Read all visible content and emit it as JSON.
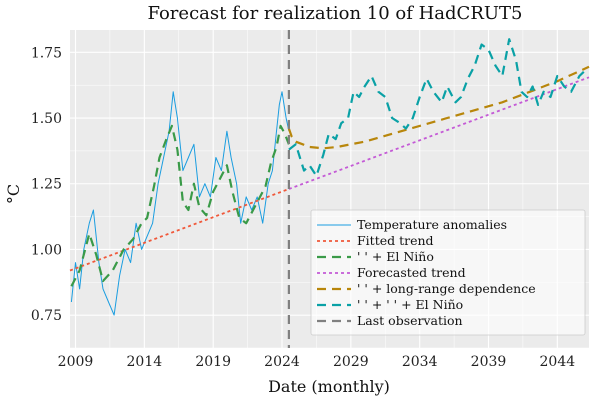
{
  "chart_data": {
    "type": "line",
    "title": "Forecast for realization 10 of HadCRUT5",
    "xlabel": "Date (monthly)",
    "ylabel": "°C",
    "xlim": [
      2008.6,
      2046.3
    ],
    "ylim": [
      0.625,
      1.835
    ],
    "grid": true,
    "legend_position": "bottom-right",
    "x_ticks": [
      2009,
      2014,
      2019,
      2024,
      2029,
      2034,
      2039,
      2044
    ],
    "x_tick_labels": [
      "2009",
      "2014",
      "2019",
      "2024",
      "2029",
      "2034",
      "2039",
      "2044"
    ],
    "y_ticks": [
      0.75,
      1.0,
      1.25,
      1.5,
      1.75
    ],
    "y_tick_labels": [
      "0.75",
      "1.00",
      "1.25",
      "1.50",
      "1.75"
    ],
    "last_observation": 2024.5,
    "colors": {
      "background": "#ebebeb",
      "grid": "#ffffff",
      "observed": "#1a9de0",
      "fitted_trend": "#f0583a",
      "el_nino": "#3a9a48",
      "forecast_trend": "#c45ad6",
      "long_range": "#b8860b",
      "forecast_el_nino": "#0aa1a6",
      "last_obs": "#808080"
    },
    "series": [
      {
        "name": "Temperature anomalies",
        "legend_label": "Temperature anomalies",
        "style": "solid-thin",
        "x": [
          2008.7,
          2009.0,
          2009.3,
          2009.6,
          2010.0,
          2010.3,
          2010.7,
          2011.0,
          2011.4,
          2011.8,
          2012.2,
          2012.6,
          2013.0,
          2013.4,
          2013.8,
          2014.2,
          2014.6,
          2015.0,
          2015.4,
          2015.8,
          2016.1,
          2016.4,
          2016.8,
          2017.2,
          2017.6,
          2018.0,
          2018.4,
          2018.8,
          2019.2,
          2019.6,
          2020.0,
          2020.3,
          2020.7,
          2021.0,
          2021.4,
          2021.8,
          2022.2,
          2022.6,
          2023.0,
          2023.3,
          2023.6,
          2023.8,
          2024.0,
          2024.3,
          2024.5
        ],
        "values": [
          0.8,
          0.95,
          0.85,
          1.0,
          1.1,
          1.15,
          0.95,
          0.85,
          0.8,
          0.75,
          0.9,
          1.0,
          0.95,
          1.1,
          1.0,
          1.05,
          1.1,
          1.25,
          1.35,
          1.45,
          1.6,
          1.5,
          1.3,
          1.35,
          1.4,
          1.2,
          1.25,
          1.2,
          1.35,
          1.3,
          1.45,
          1.35,
          1.25,
          1.1,
          1.2,
          1.15,
          1.2,
          1.1,
          1.25,
          1.3,
          1.45,
          1.55,
          1.6,
          1.5,
          1.45
        ]
      },
      {
        "name": "Fitted trend",
        "legend_label": "Fitted trend",
        "style": "dotted",
        "x": [
          2008.6,
          2024.5
        ],
        "values": [
          0.92,
          1.23
        ]
      },
      {
        "name": "'' + El Niño",
        "legend_label": "' ' + El Niño",
        "style": "dashed",
        "x": [
          2008.7,
          2009.3,
          2010.0,
          2010.5,
          2011.0,
          2011.7,
          2012.5,
          2013.2,
          2013.8,
          2014.2,
          2014.7,
          2015.1,
          2015.6,
          2016.0,
          2016.4,
          2016.8,
          2017.2,
          2017.6,
          2018.0,
          2018.5,
          2019.0,
          2019.5,
          2020.0,
          2020.4,
          2020.9,
          2021.4,
          2021.9,
          2022.4,
          2022.8,
          2023.2,
          2023.6,
          2023.9,
          2024.2,
          2024.5
        ],
        "values": [
          0.86,
          0.92,
          1.06,
          0.98,
          0.88,
          0.92,
          1.0,
          1.04,
          1.1,
          1.12,
          1.24,
          1.35,
          1.42,
          1.47,
          1.38,
          1.18,
          1.15,
          1.25,
          1.16,
          1.13,
          1.22,
          1.27,
          1.32,
          1.22,
          1.12,
          1.1,
          1.15,
          1.2,
          1.24,
          1.33,
          1.39,
          1.47,
          1.44,
          1.4
        ]
      },
      {
        "name": "Forecasted trend",
        "legend_label": "Forecasted trend",
        "style": "dotted",
        "x": [
          2024.5,
          2046.3
        ],
        "values": [
          1.23,
          1.655
        ]
      },
      {
        "name": "'' + long-range dependence",
        "legend_label": "' ' + long-range dependence",
        "style": "dashed",
        "x": [
          2024.5,
          2024.7,
          2025.0,
          2025.5,
          2026.0,
          2027.0,
          2028.0,
          2029.0,
          2030.0,
          2032.0,
          2034.0,
          2036.0,
          2038.0,
          2040.0,
          2042.0,
          2044.0,
          2046.3
        ],
        "values": [
          1.46,
          1.43,
          1.41,
          1.4,
          1.39,
          1.385,
          1.39,
          1.4,
          1.41,
          1.44,
          1.47,
          1.5,
          1.53,
          1.56,
          1.6,
          1.64,
          1.695
        ]
      },
      {
        "name": "'' + '' + El Niño",
        "legend_label": "' ' + ' ' + El Niño",
        "style": "dashed",
        "x": [
          2024.5,
          2025.0,
          2025.6,
          2026.0,
          2026.5,
          2027.0,
          2027.4,
          2027.9,
          2028.3,
          2028.8,
          2029.2,
          2029.6,
          2030.0,
          2030.5,
          2031.0,
          2031.5,
          2032.0,
          2032.6,
          2033.0,
          2033.5,
          2034.0,
          2034.5,
          2035.0,
          2035.6,
          2036.0,
          2036.6,
          2037.0,
          2037.5,
          2038.0,
          2038.5,
          2039.0,
          2039.5,
          2040.0,
          2040.5,
          2041.0,
          2041.4,
          2041.8,
          2042.2,
          2042.6,
          2043.0,
          2043.5,
          2044.0,
          2044.5,
          2045.0,
          2045.6,
          2046.0
        ],
        "values": [
          1.38,
          1.4,
          1.3,
          1.32,
          1.28,
          1.36,
          1.44,
          1.42,
          1.48,
          1.5,
          1.6,
          1.58,
          1.62,
          1.66,
          1.6,
          1.58,
          1.5,
          1.48,
          1.46,
          1.5,
          1.58,
          1.65,
          1.6,
          1.56,
          1.62,
          1.56,
          1.58,
          1.65,
          1.7,
          1.78,
          1.76,
          1.7,
          1.66,
          1.8,
          1.72,
          1.6,
          1.58,
          1.62,
          1.55,
          1.6,
          1.58,
          1.66,
          1.62,
          1.6,
          1.66,
          1.68
        ]
      },
      {
        "name": "Last observation",
        "legend_label": "Last observation",
        "style": "vline-dashed"
      }
    ]
  }
}
